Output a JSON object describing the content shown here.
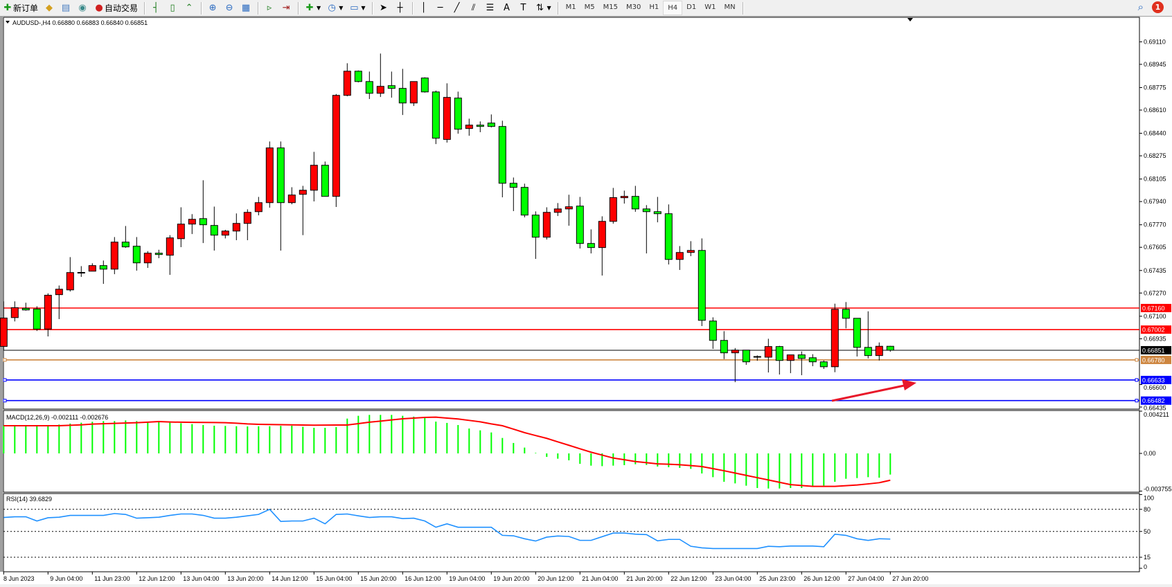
{
  "toolbar": {
    "new_order_label": "新订单",
    "auto_trading_label": "自动交易",
    "icons": [
      "new-order-icon",
      "market-watch-icon",
      "navigator-icon",
      "signals-icon",
      "auto-trading-icon",
      "bar-chart-icon",
      "candlestick-icon",
      "line-chart-icon",
      "zoom-in-icon",
      "zoom-out-icon",
      "tile-windows-icon",
      "auto-scroll-icon",
      "chart-shift-icon",
      "indicators-icon",
      "periods-icon",
      "templates-icon",
      "cursor-icon",
      "crosshair-icon",
      "vertical-line-icon",
      "horizontal-line-icon",
      "trendline-icon",
      "equidistant-channel-icon",
      "fibonacci-icon",
      "text-icon",
      "text-label-icon",
      "arrows-icon"
    ],
    "text_tool_label": "A",
    "timeframes": [
      "M1",
      "M5",
      "M15",
      "M30",
      "H1",
      "H4",
      "D1",
      "W1",
      "MN"
    ],
    "active_timeframe": "H4",
    "notification_count": "1"
  },
  "chart": {
    "header": "AUDUSD-,H4  0.66880 0.66883 0.66840 0.66851",
    "symbol": "AUDUSD-",
    "timeframe": "H4",
    "bull_color": "#ff0000",
    "bear_color": "#00ff00",
    "price_ticks": [
      "0.69110",
      "0.68945",
      "0.68775",
      "0.68610",
      "0.68440",
      "0.68275",
      "0.68105",
      "0.67940",
      "0.67770",
      "0.67605",
      "0.67435",
      "0.67270",
      "0.67100",
      "0.66935",
      "0.66600",
      "0.66435"
    ],
    "hlines": [
      {
        "price": 0.6716,
        "label": "0.67160",
        "color": "#ff0000"
      },
      {
        "price": 0.67002,
        "label": "0.67002",
        "color": "#ff0000"
      },
      {
        "price": 0.66851,
        "label": "0.66851",
        "color": "#000000"
      },
      {
        "price": 0.6678,
        "label": "0.66780",
        "color": "#cd853f"
      },
      {
        "price": 0.66633,
        "label": "0.66633",
        "color": "#0000ff"
      },
      {
        "price": 0.66482,
        "label": "0.66482",
        "color": "#0000ff"
      }
    ],
    "arrow_color": "#e8182a",
    "time_labels": [
      "8 Jun 2023",
      "9 Jun 04:00",
      "11 Jun 23:00",
      "12 Jun 12:00",
      "13 Jun 04:00",
      "13 Jun 20:00",
      "14 Jun 12:00",
      "15 Jun 04:00",
      "15 Jun 20:00",
      "16 Jun 12:00",
      "19 Jun 04:00",
      "19 Jun 20:00",
      "20 Jun 12:00",
      "21 Jun 04:00",
      "21 Jun 20:00",
      "22 Jun 12:00",
      "23 Jun 04:00",
      "25 Jun 23:00",
      "26 Jun 12:00",
      "27 Jun 04:00",
      "27 Jun 20:00"
    ]
  },
  "macd": {
    "label": "MACD(12,26,9) -0.002111 -0.002676",
    "ticks": [
      "0.004211",
      "0.00",
      "-0.003755"
    ],
    "hist_color": "#00ff00",
    "signal_color": "#ff0000"
  },
  "rsi": {
    "label": "RSI(14) 39.6829",
    "ticks": [
      "100",
      "80",
      "50",
      "15",
      "0"
    ],
    "levels": [
      80,
      50,
      15
    ],
    "color": "#1e90ff"
  },
  "chart_data": {
    "type": "candlestick",
    "ohlc": [
      [
        0.66879,
        0.67209,
        0.66854,
        0.67087
      ],
      [
        0.6709,
        0.67209,
        0.67062,
        0.67163
      ],
      [
        0.67158,
        0.67199,
        0.67141,
        0.67146
      ],
      [
        0.67153,
        0.67173,
        0.66992,
        0.67006
      ],
      [
        0.67006,
        0.67268,
        0.66952,
        0.67254
      ],
      [
        0.67258,
        0.67325,
        0.67079,
        0.67298
      ],
      [
        0.67293,
        0.67533,
        0.67281,
        0.6742
      ],
      [
        0.6742,
        0.67467,
        0.67388,
        0.67421
      ],
      [
        0.6743,
        0.67488,
        0.6743,
        0.67471
      ],
      [
        0.67471,
        0.67508,
        0.67337,
        0.67445
      ],
      [
        0.67445,
        0.6768,
        0.67408,
        0.67643
      ],
      [
        0.67643,
        0.67761,
        0.67601,
        0.67608
      ],
      [
        0.67613,
        0.6768,
        0.67434,
        0.67491
      ],
      [
        0.67491,
        0.67577,
        0.67454,
        0.67562
      ],
      [
        0.67562,
        0.67587,
        0.67525,
        0.67552
      ],
      [
        0.67547,
        0.67694,
        0.67403,
        0.67674
      ],
      [
        0.67668,
        0.67898,
        0.67606,
        0.67775
      ],
      [
        0.67775,
        0.67848,
        0.67702,
        0.6781
      ],
      [
        0.67815,
        0.68096,
        0.67636,
        0.6777
      ],
      [
        0.67765,
        0.67903,
        0.67581,
        0.67694
      ],
      [
        0.67694,
        0.67733,
        0.6767,
        0.67724
      ],
      [
        0.67724,
        0.67853,
        0.67657,
        0.6778
      ],
      [
        0.6778,
        0.67883,
        0.67657,
        0.67861
      ],
      [
        0.67866,
        0.67974,
        0.67839,
        0.67932
      ],
      [
        0.67932,
        0.6838,
        0.67895,
        0.68333
      ],
      [
        0.68333,
        0.6838,
        0.67581,
        0.67932
      ],
      [
        0.67932,
        0.68045,
        0.6792,
        0.67988
      ],
      [
        0.67993,
        0.68055,
        0.67694,
        0.68023
      ],
      [
        0.68023,
        0.68304,
        0.67941,
        0.68206
      ],
      [
        0.68206,
        0.68233,
        0.67978,
        0.67978
      ],
      [
        0.67978,
        0.68728,
        0.679,
        0.68718
      ],
      [
        0.68718,
        0.68953,
        0.68711,
        0.68895
      ],
      [
        0.68895,
        0.689,
        0.68813,
        0.68819
      ],
      [
        0.68819,
        0.68892,
        0.68691,
        0.68733
      ],
      [
        0.68733,
        0.69024,
        0.68706,
        0.68784
      ],
      [
        0.68789,
        0.68892,
        0.68701,
        0.68769
      ],
      [
        0.68769,
        0.68912,
        0.68574,
        0.68662
      ],
      [
        0.68662,
        0.68819,
        0.6864,
        0.68819
      ],
      [
        0.68845,
        0.6885,
        0.68738,
        0.68743
      ],
      [
        0.68743,
        0.68753,
        0.68361,
        0.68404
      ],
      [
        0.68395,
        0.68806,
        0.68372,
        0.68703
      ],
      [
        0.68698,
        0.68745,
        0.68437,
        0.6847
      ],
      [
        0.68475,
        0.68547,
        0.68422,
        0.685
      ],
      [
        0.685,
        0.68527,
        0.68448,
        0.6849
      ],
      [
        0.68515,
        0.68578,
        0.68483,
        0.6849
      ],
      [
        0.6849,
        0.68532,
        0.67971,
        0.68074
      ],
      [
        0.68074,
        0.68116,
        0.6787,
        0.68044
      ],
      [
        0.68044,
        0.68071,
        0.67824,
        0.67841
      ],
      [
        0.67841,
        0.67868,
        0.6752,
        0.67679
      ],
      [
        0.67679,
        0.67898,
        0.67662,
        0.67861
      ],
      [
        0.67861,
        0.67929,
        0.67834,
        0.67886
      ],
      [
        0.67886,
        0.6799,
        0.67763,
        0.67902
      ],
      [
        0.67907,
        0.67974,
        0.67596,
        0.67633
      ],
      [
        0.67633,
        0.67736,
        0.6756,
        0.67603
      ],
      [
        0.67603,
        0.67832,
        0.67398,
        0.67795
      ],
      [
        0.67795,
        0.6804,
        0.67778,
        0.67969
      ],
      [
        0.67968,
        0.6802,
        0.67925,
        0.67978
      ],
      [
        0.67978,
        0.68055,
        0.67865,
        0.67886
      ],
      [
        0.67886,
        0.67914,
        0.6756,
        0.67866
      ],
      [
        0.67866,
        0.67974,
        0.67788,
        0.67851
      ],
      [
        0.67851,
        0.67919,
        0.67479,
        0.67516
      ],
      [
        0.67516,
        0.67614,
        0.67439,
        0.67567
      ],
      [
        0.67567,
        0.6765,
        0.6754,
        0.67582
      ],
      [
        0.67582,
        0.6767,
        0.67028,
        0.6707
      ],
      [
        0.67065,
        0.67092,
        0.66861,
        0.66923
      ],
      [
        0.66923,
        0.66991,
        0.66786,
        0.66832
      ],
      [
        0.66832,
        0.66867,
        0.66617,
        0.66852
      ],
      [
        0.66852,
        0.66852,
        0.66744,
        0.66766
      ],
      [
        0.66805,
        0.66813,
        0.66774,
        0.66805
      ],
      [
        0.668,
        0.66935,
        0.66688,
        0.66878
      ],
      [
        0.66878,
        0.66883,
        0.66673,
        0.66776
      ],
      [
        0.66776,
        0.66817,
        0.66683,
        0.66817
      ],
      [
        0.66817,
        0.66842,
        0.66668,
        0.66791
      ],
      [
        0.66796,
        0.66822,
        0.66734,
        0.66766
      ],
      [
        0.66766,
        0.66776,
        0.66714,
        0.6673
      ],
      [
        0.6673,
        0.67192,
        0.6669,
        0.67151
      ],
      [
        0.67151,
        0.67204,
        0.67011,
        0.67085
      ],
      [
        0.67085,
        0.67085,
        0.66805,
        0.66872
      ],
      [
        0.66872,
        0.67136,
        0.66791,
        0.66812
      ],
      [
        0.66812,
        0.66908,
        0.66776,
        0.6688
      ],
      [
        0.6688,
        0.66883,
        0.6684,
        0.66851
      ]
    ],
    "price_range": [
      0.66435,
      0.6911
    ],
    "macd_hist": [
      0.00276,
      0.00276,
      0.00276,
      0.00276,
      0.00283,
      0.00288,
      0.00297,
      0.00306,
      0.00315,
      0.00322,
      0.00322,
      0.00329,
      0.00322,
      0.00315,
      0.00311,
      0.00306,
      0.00301,
      0.00292,
      0.00283,
      0.00276,
      0.00274,
      0.00271,
      0.00269,
      0.00271,
      0.00271,
      0.00274,
      0.00276,
      0.00265,
      0.00255,
      0.00255,
      0.00262,
      0.00347,
      0.00375,
      0.00384,
      0.00384,
      0.00384,
      0.00375,
      0.00366,
      0.00357,
      0.00317,
      0.00304,
      0.00283,
      0.00248,
      0.0023,
      0.00209,
      0.00154,
      0.00104,
      0.00058,
      5e-05,
      -0.00035,
      -0.00053,
      -0.00069,
      -0.00104,
      -0.00122,
      -0.00127,
      -0.00122,
      -0.00117,
      -0.00108,
      -0.00115,
      -0.00131,
      -0.00138,
      -0.00145,
      -0.00154,
      -0.002,
      -0.00237,
      -0.00283,
      -0.00299,
      -0.00322,
      -0.00345,
      -0.0035,
      -0.0035,
      -0.00345,
      -0.00345,
      -0.00334,
      -0.00322,
      -0.00283,
      -0.00253,
      -0.00246,
      -0.00237,
      -0.00242,
      -0.002111
    ],
    "macd_signal": [
      0.00276,
      0.00276,
      0.00276,
      0.00276,
      0.00276,
      0.00276,
      0.0028,
      0.00285,
      0.00292,
      0.00296,
      0.00299,
      0.00303,
      0.00306,
      0.00311,
      0.00317,
      0.00313,
      0.00311,
      0.0031,
      0.00309,
      0.00308,
      0.00306,
      0.00301,
      0.00294,
      0.0029,
      0.00288,
      0.00286,
      0.00285,
      0.00283,
      0.00281,
      0.00282,
      0.00283,
      0.00283,
      0.00297,
      0.00311,
      0.00322,
      0.00334,
      0.00345,
      0.00352,
      0.00359,
      0.00361,
      0.00352,
      0.00343,
      0.00329,
      0.00315,
      0.00294,
      0.00276,
      0.00242,
      0.00207,
      0.00178,
      0.0015,
      0.00115,
      0.00081,
      0.00046,
      0.00012,
      -0.00017,
      -0.00046,
      -0.00063,
      -0.00081,
      -0.00092,
      -0.00104,
      -0.00108,
      -0.00113,
      -0.00122,
      -0.00131,
      -0.00152,
      -0.00173,
      -0.00196,
      -0.00219,
      -0.00242,
      -0.00265,
      -0.00288,
      -0.00311,
      -0.0032,
      -0.00329,
      -0.00329,
      -0.00329,
      -0.00322,
      -0.00315,
      -0.00304,
      -0.00292,
      -0.002676
    ],
    "macd_range": [
      -0.003755,
      0.004211
    ],
    "rsi": [
      69.0,
      69.9,
      69.9,
      64.2,
      68.6,
      69.3,
      71.8,
      71.8,
      71.8,
      71.8,
      74.3,
      73.1,
      68.0,
      68.6,
      69.3,
      71.8,
      73.7,
      73.7,
      71.8,
      68.0,
      68.0,
      69.3,
      71.2,
      73.1,
      80.0,
      63.6,
      64.2,
      64.2,
      68.0,
      60.4,
      73.1,
      73.7,
      71.2,
      69.0,
      69.9,
      69.9,
      67.4,
      68.0,
      64.2,
      55.7,
      60.4,
      55.7,
      55.7,
      55.7,
      55.7,
      44.7,
      44.1,
      40.1,
      37.0,
      42.3,
      43.8,
      43.2,
      37.9,
      37.9,
      42.9,
      47.8,
      47.8,
      46.3,
      45.7,
      37.3,
      39.2,
      39.2,
      29.9,
      27.8,
      26.8,
      26.8,
      26.8,
      26.8,
      26.8,
      29.9,
      29.3,
      30.2,
      30.2,
      30.2,
      29.3,
      46.3,
      44.7,
      40.1,
      37.9,
      40.1,
      39.68
    ],
    "rsi_range": [
      0,
      100
    ]
  }
}
